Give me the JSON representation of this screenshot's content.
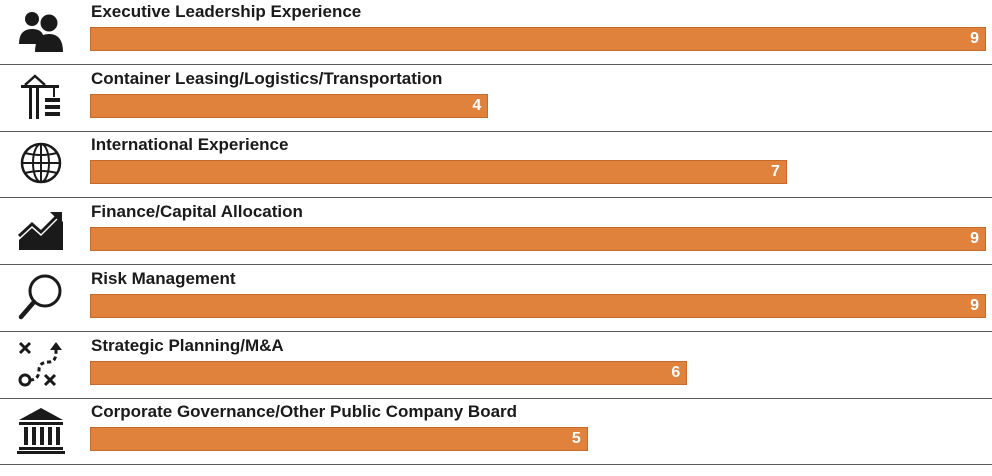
{
  "chart_data": {
    "type": "bar",
    "orientation": "horizontal",
    "title": "",
    "xlabel": "",
    "ylabel": "",
    "xlim": [
      0,
      9
    ],
    "categories": [
      "Executive Leadership Experience",
      "Container Leasing/Logistics/Transportation",
      "International Experience",
      "Finance/Capital Allocation",
      "Risk Management",
      "Strategic Planning/M&A",
      "Corporate Governance/Other Public Company Board"
    ],
    "values": [
      9,
      4,
      7,
      9,
      9,
      6,
      5
    ],
    "icons": [
      "people-icon",
      "crane-icon",
      "globe-icon",
      "trend-chart-icon",
      "magnifier-icon",
      "strategy-icon",
      "institution-icon"
    ],
    "bar_color": "#e0813c",
    "grid": false
  }
}
